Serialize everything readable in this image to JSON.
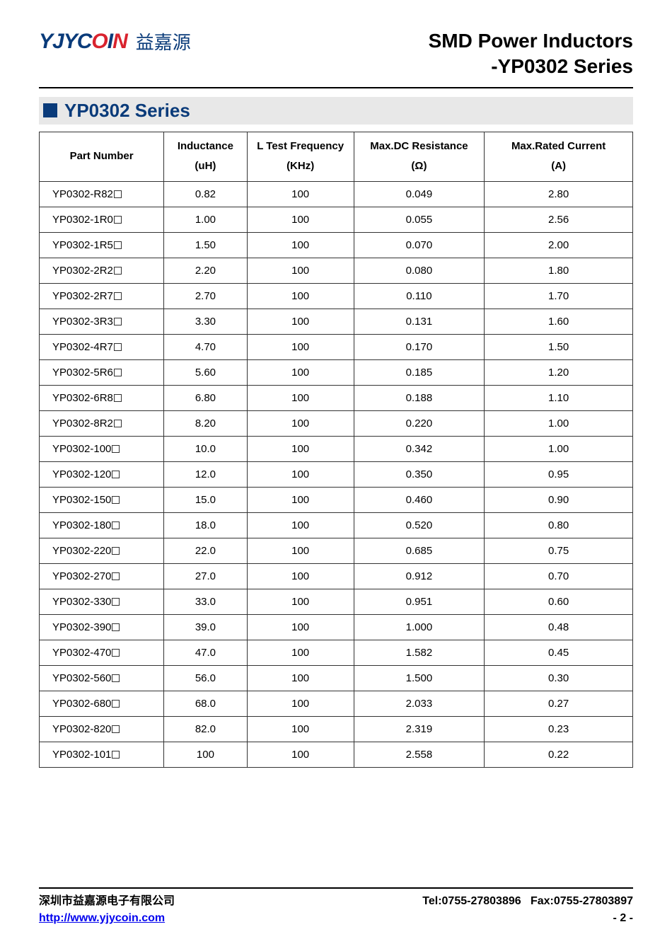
{
  "logo": {
    "en_part1": "YJYC",
    "en_red1": "O",
    "en_part2": "I",
    "en_red2": "N",
    "cn": "益嘉源"
  },
  "title": {
    "line1": "SMD Power Inductors",
    "line2": "-YP0302 Series"
  },
  "section": {
    "title": "YP0302 Series"
  },
  "table": {
    "columns": [
      {
        "h1": "Part Number",
        "h2": ""
      },
      {
        "h1": "Inductance",
        "h2": "(uH)"
      },
      {
        "h1": "L Test Frequency",
        "h2": "(KHz)"
      },
      {
        "h1": "Max.DC Resistance",
        "h2": "(Ω)"
      },
      {
        "h1": "Max.Rated Current",
        "h2": "(A)"
      }
    ],
    "rows": [
      [
        "YP0302-R82",
        "0.82",
        "100",
        "0.049",
        "2.80"
      ],
      [
        "YP0302-1R0",
        "1.00",
        "100",
        "0.055",
        "2.56"
      ],
      [
        "YP0302-1R5",
        "1.50",
        "100",
        "0.070",
        "2.00"
      ],
      [
        "YP0302-2R2",
        "2.20",
        "100",
        "0.080",
        "1.80"
      ],
      [
        "YP0302-2R7",
        "2.70",
        "100",
        "0.110",
        "1.70"
      ],
      [
        "YP0302-3R3",
        "3.30",
        "100",
        "0.131",
        "1.60"
      ],
      [
        "YP0302-4R7",
        "4.70",
        "100",
        "0.170",
        "1.50"
      ],
      [
        "YP0302-5R6",
        "5.60",
        "100",
        "0.185",
        "1.20"
      ],
      [
        "YP0302-6R8",
        "6.80",
        "100",
        "0.188",
        "1.10"
      ],
      [
        "YP0302-8R2",
        "8.20",
        "100",
        "0.220",
        "1.00"
      ],
      [
        "YP0302-100",
        "10.0",
        "100",
        "0.342",
        "1.00"
      ],
      [
        "YP0302-120",
        "12.0",
        "100",
        "0.350",
        "0.95"
      ],
      [
        "YP0302-150",
        "15.0",
        "100",
        "0.460",
        "0.90"
      ],
      [
        "YP0302-180",
        "18.0",
        "100",
        "0.520",
        "0.80"
      ],
      [
        "YP0302-220",
        "22.0",
        "100",
        "0.685",
        "0.75"
      ],
      [
        "YP0302-270",
        "27.0",
        "100",
        "0.912",
        "0.70"
      ],
      [
        "YP0302-330",
        "33.0",
        "100",
        "0.951",
        "0.60"
      ],
      [
        "YP0302-390",
        "39.0",
        "100",
        "1.000",
        "0.48"
      ],
      [
        "YP0302-470",
        "47.0",
        "100",
        "1.582",
        "0.45"
      ],
      [
        "YP0302-560",
        "56.0",
        "100",
        "1.500",
        "0.30"
      ],
      [
        "YP0302-680",
        "68.0",
        "100",
        "2.033",
        "0.27"
      ],
      [
        "YP0302-820",
        "82.0",
        "100",
        "2.319",
        "0.23"
      ],
      [
        "YP0302-101",
        "100",
        "100",
        "2.558",
        "0.22"
      ]
    ]
  },
  "footer": {
    "company": "深圳市益嘉源电子有限公司",
    "tel": "Tel:0755-27803896",
    "fax": "Fax:0755-27803897",
    "url": "http://www.yjycoin.com",
    "page": "- 2 -"
  }
}
